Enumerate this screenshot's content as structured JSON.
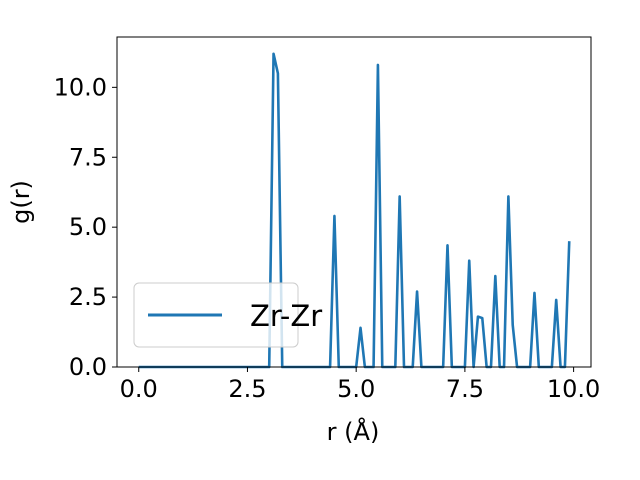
{
  "chart_data": {
    "type": "line",
    "xlabel": "r (Å)",
    "ylabel": "g(r)",
    "xlim": [
      -0.5,
      10.4
    ],
    "ylim": [
      0,
      11.8
    ],
    "xticks": [
      0.0,
      2.5,
      5.0,
      7.5,
      10.0
    ],
    "xtick_labels": [
      "0.0",
      "2.5",
      "5.0",
      "7.5",
      "10.0"
    ],
    "yticks": [
      0.0,
      2.5,
      5.0,
      7.5,
      10.0
    ],
    "ytick_labels": [
      "0.0",
      "2.5",
      "5.0",
      "7.5",
      "10.0"
    ],
    "grid": false,
    "legend_position": "lower-left",
    "series": [
      {
        "name": "Zr-Zr",
        "color": "#1f77b4",
        "x": [
          0.0,
          0.1,
          0.2,
          0.3,
          0.4,
          0.5,
          0.6,
          0.7,
          0.8,
          0.9,
          1.0,
          1.1,
          1.2,
          1.3,
          1.4,
          1.5,
          1.6,
          1.7,
          1.8,
          1.9,
          2.0,
          2.1,
          2.2,
          2.3,
          2.4,
          2.5,
          2.6,
          2.7,
          2.8,
          2.9,
          3.0,
          3.1,
          3.2,
          3.3,
          3.4,
          3.5,
          3.6,
          3.7,
          3.8,
          3.9,
          4.0,
          4.1,
          4.2,
          4.3,
          4.4,
          4.5,
          4.6,
          4.7,
          4.8,
          4.9,
          5.0,
          5.1,
          5.2,
          5.3,
          5.4,
          5.5,
          5.6,
          5.7,
          5.8,
          5.9,
          6.0,
          6.1,
          6.2,
          6.3,
          6.4,
          6.5,
          6.6,
          6.7,
          6.8,
          6.9,
          7.0,
          7.1,
          7.2,
          7.3,
          7.4,
          7.5,
          7.6,
          7.7,
          7.8,
          7.9,
          8.0,
          8.1,
          8.2,
          8.3,
          8.4,
          8.5,
          8.6,
          8.7,
          8.8,
          8.9,
          9.0,
          9.1,
          9.2,
          9.3,
          9.4,
          9.5,
          9.6,
          9.7,
          9.8,
          9.9
        ],
        "y": [
          0,
          0,
          0,
          0,
          0,
          0,
          0,
          0,
          0,
          0,
          0,
          0,
          0,
          0,
          0,
          0,
          0,
          0,
          0,
          0,
          0,
          0,
          0,
          0,
          0,
          0,
          0,
          0,
          0,
          0,
          0,
          11.2,
          10.5,
          0,
          0,
          0,
          0,
          0,
          0,
          0,
          0,
          0,
          0,
          0,
          0,
          5.4,
          0,
          0,
          0,
          0,
          0,
          1.4,
          0,
          0,
          0,
          10.8,
          0,
          0,
          0,
          0,
          6.1,
          0,
          0,
          0,
          2.7,
          0,
          0,
          0,
          0,
          0,
          0,
          4.35,
          0,
          0,
          0,
          0,
          3.8,
          0,
          1.8,
          1.75,
          0,
          0,
          3.25,
          0,
          0,
          6.1,
          1.5,
          0,
          0,
          0,
          0,
          2.65,
          0,
          0,
          0,
          0,
          2.4,
          0,
          0,
          4.5
        ]
      }
    ]
  }
}
